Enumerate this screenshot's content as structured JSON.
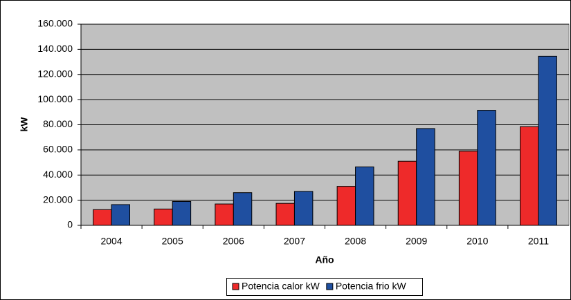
{
  "chart_data": {
    "type": "bar",
    "x_label": "Año",
    "y_label": "kW",
    "categories": [
      "2004",
      "2005",
      "2006",
      "2007",
      "2008",
      "2009",
      "2010",
      "2011"
    ],
    "series": [
      {
        "name": "Potencia calor kW",
        "color": "#ee2a2a",
        "values": [
          12500,
          13000,
          17000,
          17500,
          31000,
          51000,
          59000,
          78500
        ]
      },
      {
        "name": "Potencia frio kW",
        "color": "#1f4fa0",
        "values": [
          16500,
          19000,
          26000,
          27000,
          46500,
          77000,
          91500,
          134500
        ]
      }
    ],
    "ylim": [
      0,
      160000
    ],
    "yticks": [
      0,
      {
        "value": 20000,
        "label": "20.000"
      },
      {
        "value": 40000,
        "label": "40.000"
      },
      {
        "value": 60000,
        "label": "60.000"
      },
      {
        "value": 80000,
        "label": "80.000"
      },
      {
        "value": 100000,
        "label": "100.000"
      },
      {
        "value": 120000,
        "label": "120.000"
      },
      {
        "value": 140000,
        "label": "140.000"
      },
      {
        "value": 160000,
        "label": "160.000"
      }
    ],
    "grid": true,
    "legend": "bottom"
  }
}
